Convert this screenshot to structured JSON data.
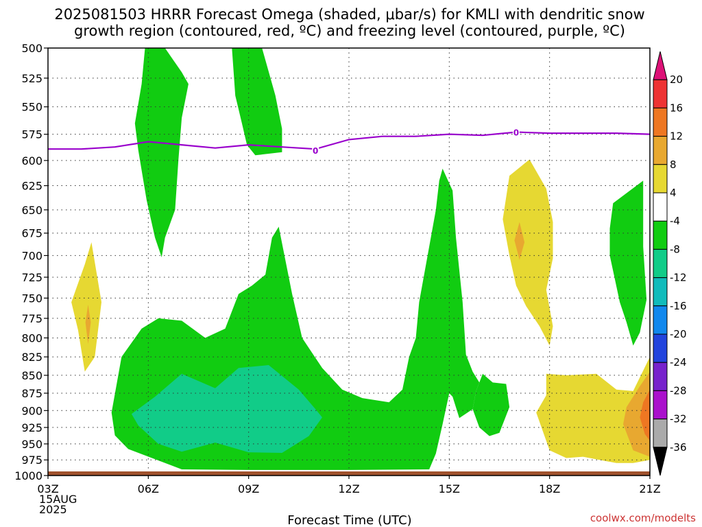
{
  "chart_data": {
    "type": "time-height contour",
    "title_lines": [
      "2025081503 HRRR Forecast Omega (shaded, μbar/s) for KMLI with dendritic snow",
      "growth region (contoured, red, ºC) and freezing level (contoured, purple, ºC)"
    ],
    "xlabel": "Forecast Time (UTC)",
    "credit": "coolwx.com/modelts",
    "x_ticks": [
      {
        "hour": 3,
        "lines": [
          "03Z",
          "15AUG",
          "2025"
        ]
      },
      {
        "hour": 6,
        "lines": [
          "06Z"
        ]
      },
      {
        "hour": 9,
        "lines": [
          "09Z"
        ]
      },
      {
        "hour": 12,
        "lines": [
          "12Z"
        ]
      },
      {
        "hour": 15,
        "lines": [
          "15Z"
        ]
      },
      {
        "hour": 18,
        "lines": [
          "18Z"
        ]
      },
      {
        "hour": 21,
        "lines": [
          "21Z"
        ]
      }
    ],
    "xlim": [
      3,
      21
    ],
    "ylim": [
      500,
      1000
    ],
    "y_scale": "log-pressure, inverted",
    "y_ticks": [
      500,
      525,
      550,
      575,
      600,
      625,
      650,
      675,
      700,
      725,
      750,
      775,
      800,
      825,
      850,
      875,
      900,
      925,
      950,
      975,
      1000
    ],
    "grid": true,
    "freezing_level": {
      "color": "#9900cc",
      "label": "0",
      "label_points": [
        [
          11,
          590
        ],
        [
          17,
          573
        ]
      ],
      "points": [
        [
          3,
          589
        ],
        [
          4,
          589
        ],
        [
          5,
          587
        ],
        [
          6,
          582
        ],
        [
          7,
          585
        ],
        [
          8,
          588
        ],
        [
          9,
          585
        ],
        [
          10,
          587
        ],
        [
          11,
          589
        ],
        [
          12,
          580
        ],
        [
          13,
          577
        ],
        [
          14,
          577
        ],
        [
          15,
          575
        ],
        [
          16,
          576
        ],
        [
          17,
          573
        ],
        [
          18,
          574
        ],
        [
          19,
          574
        ],
        [
          20,
          574
        ],
        [
          21,
          575
        ]
      ]
    },
    "ground_strip_color": "#a0522d",
    "colorbar": {
      "levels": [
        20,
        16,
        12,
        8,
        4,
        -4,
        -8,
        -12,
        -16,
        -20,
        -24,
        -28,
        -32,
        -36
      ],
      "bands": [
        {
          "color": "#dd1177"
        },
        {
          "color": "#ee3333"
        },
        {
          "color": "#ee7722"
        },
        {
          "color": "#e8a830"
        },
        {
          "color": "#e6d832"
        },
        {
          "color": "#ffffff"
        },
        {
          "color": "#11cc11"
        },
        {
          "color": "#11cc88"
        },
        {
          "color": "#11bbbb"
        },
        {
          "color": "#1188ee"
        },
        {
          "color": "#2244dd"
        },
        {
          "color": "#7722cc"
        },
        {
          "color": "#aa11cc"
        },
        {
          "color": "#aaaaaa"
        },
        {
          "color": "#000000"
        }
      ]
    },
    "omega_regions": [
      {
        "value_range": [
          -8,
          -4
        ],
        "color": "#11cc11",
        "points": [
          [
            4.9,
            903
          ],
          [
            5.2,
            825
          ],
          [
            5.8,
            788
          ],
          [
            6.3,
            775
          ],
          [
            7.0,
            778
          ],
          [
            7.7,
            800
          ],
          [
            8.3,
            788
          ],
          [
            8.7,
            745
          ],
          [
            9.1,
            735
          ],
          [
            9.5,
            722
          ],
          [
            9.7,
            680
          ],
          [
            9.9,
            668
          ],
          [
            10.3,
            745
          ],
          [
            10.6,
            800
          ],
          [
            11.2,
            840
          ],
          [
            11.8,
            870
          ],
          [
            12.4,
            882
          ],
          [
            13.2,
            888
          ],
          [
            13.6,
            870
          ],
          [
            13.8,
            825
          ],
          [
            14.0,
            800
          ],
          [
            14.1,
            755
          ],
          [
            14.6,
            650
          ],
          [
            14.7,
            620
          ],
          [
            14.8,
            608
          ],
          [
            15.1,
            630
          ],
          [
            15.2,
            680
          ],
          [
            15.4,
            755
          ],
          [
            15.5,
            822
          ],
          [
            15.7,
            845
          ],
          [
            15.9,
            860
          ],
          [
            15.8,
            872
          ],
          [
            15.7,
            898
          ],
          [
            15.3,
            911
          ],
          [
            15.1,
            880
          ],
          [
            15.0,
            875
          ],
          [
            14.8,
            920
          ],
          [
            14.6,
            965
          ],
          [
            14.4,
            990
          ],
          [
            12.0,
            991
          ],
          [
            9.0,
            991
          ],
          [
            7.0,
            990
          ],
          [
            5.4,
            958
          ],
          [
            5.0,
            937
          ]
        ]
      },
      {
        "value_range": [
          -8,
          -4
        ],
        "color": "#11cc11",
        "points": [
          [
            15.8,
            872
          ],
          [
            16.0,
            848
          ],
          [
            16.3,
            860
          ],
          [
            16.7,
            862
          ],
          [
            16.8,
            895
          ],
          [
            16.5,
            933
          ],
          [
            16.2,
            938
          ],
          [
            15.9,
            925
          ],
          [
            15.7,
            898
          ]
        ]
      },
      {
        "value_range": [
          -8,
          -4
        ],
        "color": "#11cc11",
        "points": [
          [
            5.9,
            500
          ],
          [
            6.5,
            500
          ],
          [
            7.0,
            520
          ],
          [
            7.2,
            530
          ],
          [
            7.0,
            560
          ],
          [
            6.9,
            600
          ],
          [
            6.8,
            650
          ],
          [
            6.5,
            680
          ],
          [
            6.4,
            702
          ],
          [
            6.2,
            680
          ],
          [
            5.95,
            640
          ],
          [
            5.7,
            590
          ],
          [
            5.6,
            565
          ],
          [
            5.8,
            530
          ]
        ]
      },
      {
        "value_range": [
          -8,
          -4
        ],
        "color": "#11cc11",
        "points": [
          [
            8.5,
            500
          ],
          [
            9.4,
            500
          ],
          [
            9.8,
            540
          ],
          [
            10.0,
            570
          ],
          [
            10.0,
            592
          ],
          [
            9.2,
            595
          ],
          [
            8.95,
            585
          ],
          [
            8.8,
            565
          ],
          [
            8.6,
            540
          ]
        ]
      },
      {
        "value_range": [
          -8,
          -4
        ],
        "color": "#11cc11",
        "points": [
          [
            19.9,
            643
          ],
          [
            20.8,
            620
          ],
          [
            20.8,
            690
          ],
          [
            20.9,
            752
          ],
          [
            20.7,
            793
          ],
          [
            20.5,
            810
          ],
          [
            20.3,
            780
          ],
          [
            20.1,
            755
          ],
          [
            19.8,
            700
          ],
          [
            19.8,
            670
          ]
        ]
      },
      {
        "value_range": [
          -12,
          -8
        ],
        "color": "#11cc88",
        "points": [
          [
            5.5,
            905
          ],
          [
            6.2,
            880
          ],
          [
            7.0,
            848
          ],
          [
            8.0,
            868
          ],
          [
            8.7,
            840
          ],
          [
            9.6,
            836
          ],
          [
            10.5,
            870
          ],
          [
            11.0,
            898
          ],
          [
            11.2,
            910
          ],
          [
            10.8,
            938
          ],
          [
            10.0,
            964
          ],
          [
            9.0,
            963
          ],
          [
            8.0,
            948
          ],
          [
            7.0,
            962
          ],
          [
            6.3,
            950
          ],
          [
            5.7,
            922
          ]
        ]
      },
      {
        "value_range": [
          4,
          8
        ],
        "color": "#e6d832",
        "points": [
          [
            4.3,
            685
          ],
          [
            4.6,
            755
          ],
          [
            4.4,
            825
          ],
          [
            4.1,
            845
          ],
          [
            3.9,
            790
          ],
          [
            3.7,
            755
          ],
          [
            4.1,
            710
          ]
        ]
      },
      {
        "value_range": [
          4,
          8
        ],
        "color": "#e6d832",
        "points": [
          [
            17.4,
            599
          ],
          [
            17.9,
            628
          ],
          [
            18.1,
            663
          ],
          [
            18.1,
            703
          ],
          [
            17.9,
            740
          ],
          [
            18.1,
            785
          ],
          [
            18.0,
            810
          ],
          [
            17.7,
            785
          ],
          [
            17.3,
            760
          ],
          [
            17.0,
            735
          ],
          [
            16.8,
            700
          ],
          [
            16.6,
            660
          ],
          [
            16.8,
            615
          ]
        ]
      },
      {
        "value_range": [
          4,
          8
        ],
        "color": "#e6d832",
        "points": [
          [
            17.9,
            848
          ],
          [
            18.5,
            850
          ],
          [
            19.4,
            848
          ],
          [
            20.0,
            870
          ],
          [
            20.5,
            872
          ],
          [
            21.0,
            825
          ],
          [
            21.0,
            975
          ],
          [
            20.5,
            980
          ],
          [
            20.0,
            980
          ],
          [
            19.5,
            975
          ],
          [
            19.0,
            970
          ],
          [
            18.5,
            972
          ],
          [
            18.0,
            960
          ],
          [
            17.6,
            903
          ],
          [
            17.9,
            878
          ]
        ]
      },
      {
        "value_range": [
          8,
          12
        ],
        "color": "#e8a830",
        "points": [
          [
            21.0,
            845
          ],
          [
            20.7,
            865
          ],
          [
            20.3,
            895
          ],
          [
            20.2,
            920
          ],
          [
            20.5,
            960
          ],
          [
            21.0,
            970
          ]
        ]
      },
      {
        "value_range": [
          12,
          16
        ],
        "color": "#ee7722",
        "points": [
          [
            21.0,
            870
          ],
          [
            20.8,
            888
          ],
          [
            20.7,
            910
          ],
          [
            20.85,
            935
          ],
          [
            21.0,
            945
          ]
        ]
      },
      {
        "value_range": [
          8,
          12
        ],
        "color": "#e8a830",
        "points": [
          [
            4.2,
            758
          ],
          [
            4.28,
            780
          ],
          [
            4.2,
            808
          ],
          [
            4.12,
            780
          ]
        ]
      },
      {
        "value_range": [
          8,
          12
        ],
        "color": "#e8a830",
        "points": [
          [
            17.1,
            663
          ],
          [
            17.25,
            685
          ],
          [
            17.1,
            705
          ],
          [
            16.95,
            683
          ]
        ]
      }
    ]
  }
}
